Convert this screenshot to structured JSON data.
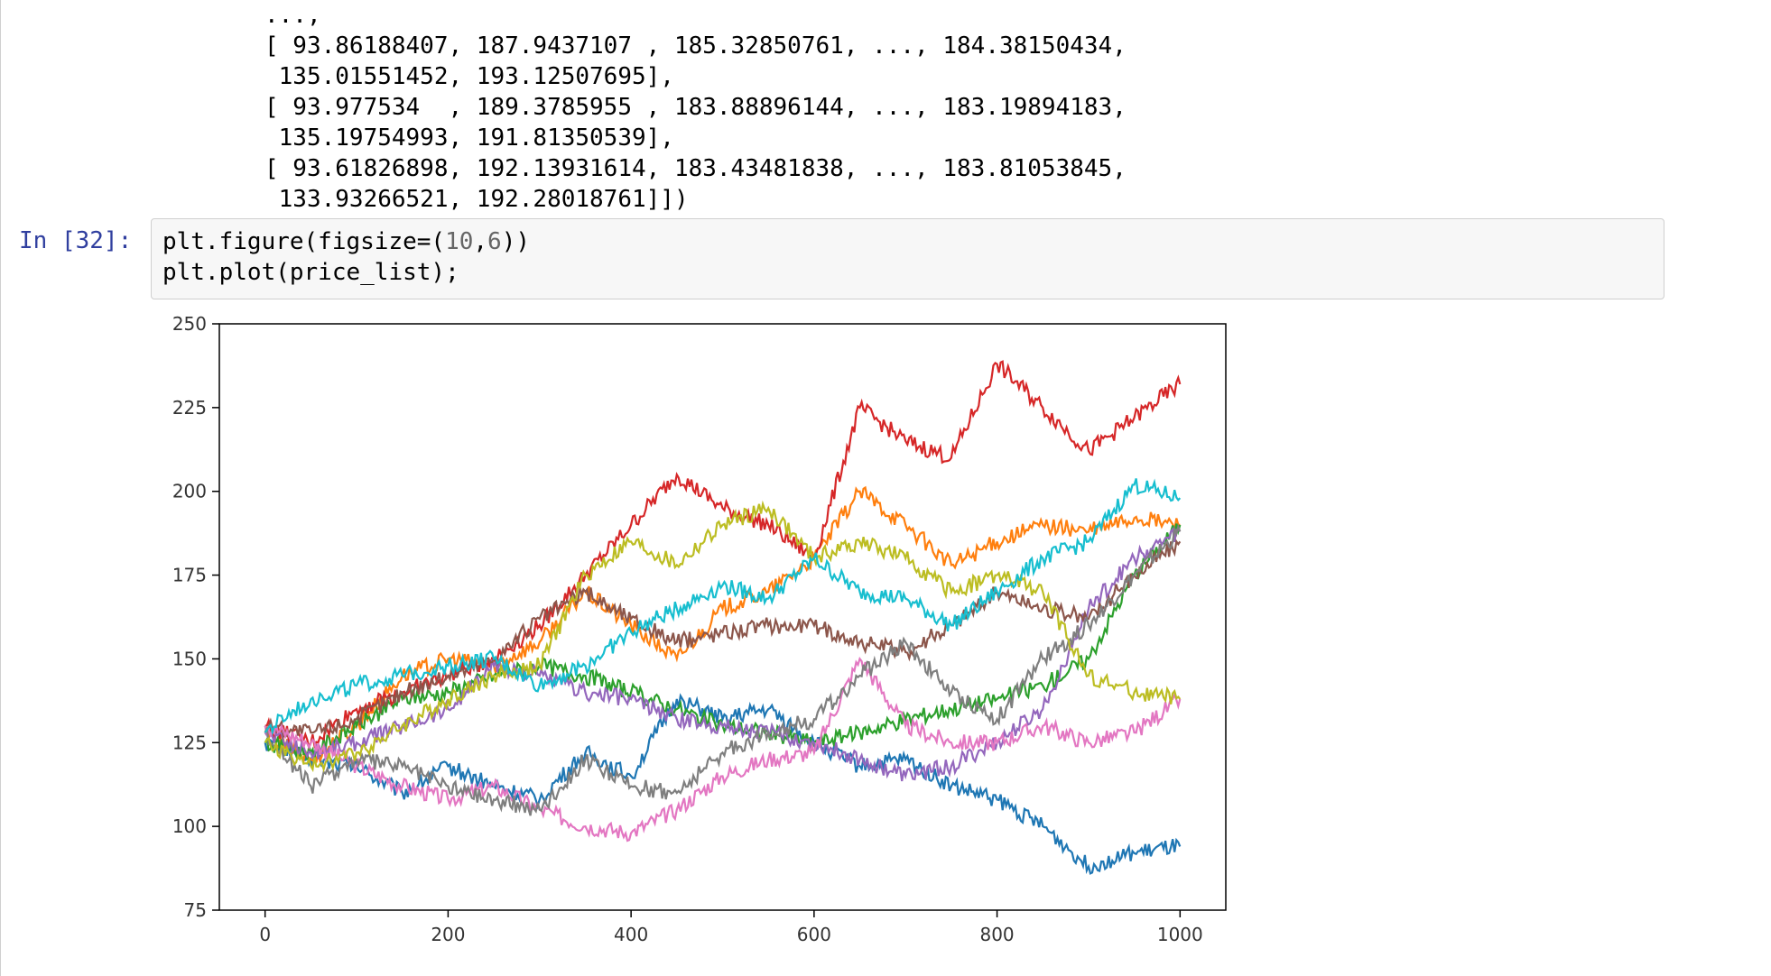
{
  "output": {
    "lines": [
      "...,",
      "[ 93.86188407, 187.9437107 , 185.32850761, ..., 184.38150434,",
      " 135.01551452, 193.12507695],",
      "[ 93.977534  , 189.3785955 , 183.88896144, ..., 183.19894183,",
      " 135.19754993, 191.81350539],",
      "[ 93.61826898, 192.13931614, 183.43481838, ..., 183.81053845,",
      " 133.93266521, 192.28018761]])"
    ]
  },
  "cell": {
    "prompt": "In [32]:",
    "code_line1_a": "plt.figure(figsize=(",
    "code_line1_n1": "10",
    "code_line1_b": ",",
    "code_line1_n2": "6",
    "code_line1_c": "))",
    "code_line2": "plt.plot(price_list);"
  },
  "chart_data": {
    "type": "line",
    "xlim": [
      -50,
      1050
    ],
    "ylim": [
      75,
      250
    ],
    "xticks": [
      0,
      200,
      400,
      600,
      800,
      1000
    ],
    "yticks": [
      75,
      100,
      125,
      150,
      175,
      200,
      225,
      250
    ],
    "grid": false,
    "series": [
      {
        "color": "#1f77b4",
        "x": [
          0,
          50,
          100,
          150,
          200,
          250,
          300,
          350,
          400,
          450,
          500,
          550,
          600,
          650,
          700,
          750,
          800,
          850,
          900,
          950,
          1000
        ],
        "y": [
          125,
          120,
          118,
          110,
          118,
          112,
          108,
          122,
          115,
          138,
          132,
          135,
          125,
          118,
          120,
          112,
          108,
          100,
          88,
          92,
          94
        ]
      },
      {
        "color": "#ff7f0e",
        "x": [
          0,
          50,
          100,
          150,
          200,
          250,
          300,
          350,
          400,
          450,
          500,
          550,
          600,
          650,
          700,
          750,
          800,
          850,
          900,
          950,
          1000
        ],
        "y": [
          128,
          120,
          130,
          145,
          150,
          148,
          155,
          170,
          160,
          150,
          165,
          170,
          180,
          200,
          190,
          178,
          185,
          190,
          188,
          192,
          190
        ]
      },
      {
        "color": "#2ca02c",
        "x": [
          0,
          50,
          100,
          150,
          200,
          250,
          300,
          350,
          400,
          450,
          500,
          550,
          600,
          650,
          700,
          750,
          800,
          850,
          900,
          950,
          1000
        ],
        "y": [
          125,
          122,
          130,
          138,
          140,
          145,
          148,
          145,
          140,
          135,
          130,
          128,
          125,
          128,
          132,
          135,
          138,
          142,
          150,
          175,
          190
        ]
      },
      {
        "color": "#d62728",
        "x": [
          0,
          50,
          100,
          150,
          200,
          250,
          300,
          350,
          400,
          450,
          500,
          550,
          600,
          650,
          700,
          750,
          800,
          850,
          900,
          950,
          1000
        ],
        "y": [
          130,
          125,
          135,
          140,
          145,
          150,
          160,
          175,
          190,
          205,
          195,
          190,
          180,
          225,
          215,
          210,
          238,
          225,
          212,
          222,
          232
        ]
      },
      {
        "color": "#9467bd",
        "x": [
          0,
          50,
          100,
          150,
          200,
          250,
          300,
          350,
          400,
          450,
          500,
          550,
          600,
          650,
          700,
          750,
          800,
          850,
          900,
          950,
          1000
        ],
        "y": [
          128,
          122,
          125,
          130,
          135,
          148,
          145,
          140,
          138,
          132,
          130,
          128,
          125,
          120,
          115,
          118,
          125,
          135,
          165,
          180,
          188
        ]
      },
      {
        "color": "#8c564b",
        "x": [
          0,
          50,
          100,
          150,
          200,
          250,
          300,
          350,
          400,
          450,
          500,
          550,
          600,
          650,
          700,
          750,
          800,
          850,
          900,
          950,
          1000
        ],
        "y": [
          130,
          128,
          132,
          140,
          145,
          150,
          162,
          170,
          162,
          155,
          158,
          160,
          160,
          155,
          152,
          160,
          170,
          165,
          162,
          175,
          185
        ]
      },
      {
        "color": "#e377c2",
        "x": [
          0,
          50,
          100,
          150,
          200,
          250,
          300,
          350,
          400,
          450,
          500,
          550,
          600,
          650,
          700,
          750,
          800,
          850,
          900,
          950,
          1000
        ],
        "y": [
          130,
          125,
          118,
          112,
          108,
          112,
          105,
          100,
          98,
          105,
          115,
          120,
          122,
          150,
          130,
          125,
          125,
          130,
          125,
          128,
          138
        ]
      },
      {
        "color": "#7f7f7f",
        "x": [
          0,
          50,
          100,
          150,
          200,
          250,
          300,
          350,
          400,
          450,
          500,
          550,
          600,
          650,
          700,
          750,
          800,
          850,
          900,
          950,
          1000
        ],
        "y": [
          128,
          112,
          120,
          118,
          112,
          108,
          105,
          120,
          112,
          110,
          122,
          128,
          132,
          145,
          155,
          140,
          132,
          150,
          160,
          175,
          188
        ]
      },
      {
        "color": "#bcbd22",
        "x": [
          0,
          50,
          100,
          150,
          200,
          250,
          300,
          350,
          400,
          450,
          500,
          550,
          600,
          650,
          700,
          750,
          800,
          850,
          900,
          950,
          1000
        ],
        "y": [
          125,
          118,
          122,
          130,
          138,
          145,
          148,
          175,
          185,
          178,
          190,
          195,
          180,
          185,
          180,
          170,
          175,
          170,
          145,
          140,
          138
        ]
      },
      {
        "color": "#17becf",
        "x": [
          0,
          50,
          100,
          150,
          200,
          250,
          300,
          350,
          400,
          450,
          500,
          550,
          600,
          650,
          700,
          750,
          800,
          850,
          900,
          950,
          1000
        ],
        "y": [
          128,
          138,
          142,
          145,
          148,
          150,
          142,
          148,
          158,
          165,
          172,
          168,
          180,
          170,
          168,
          160,
          170,
          180,
          185,
          202,
          198
        ]
      }
    ]
  }
}
